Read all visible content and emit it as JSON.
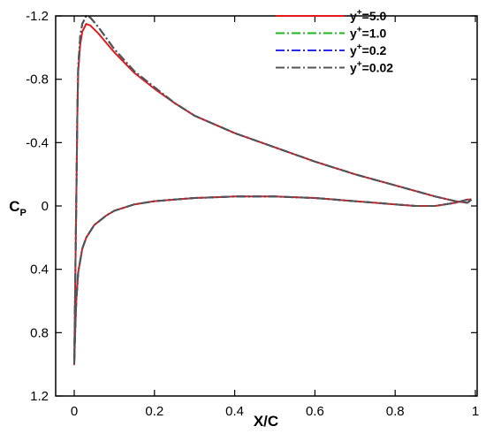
{
  "chart_data": {
    "type": "line",
    "title": "",
    "xlabel": "X/C",
    "ylabel_main": "C",
    "ylabel_sub": "P",
    "xlim": [
      0,
      1
    ],
    "ylim": [
      1.2,
      -1.2
    ],
    "y_inverted": true,
    "grid": false,
    "legend_position": "top-right",
    "x_ticks": [
      0,
      0.2,
      0.4,
      0.6,
      0.8,
      1
    ],
    "x_tick_labels": [
      "0",
      "0.2",
      "0.4",
      "0.6",
      "0.8",
      "1"
    ],
    "y_ticks": [
      -1.2,
      -0.8,
      -0.4,
      0,
      0.4,
      0.8,
      1.2
    ],
    "y_tick_labels": [
      "-1.2",
      "-0.8",
      "-0.4",
      "0",
      "0.4",
      "0.8",
      "1.2"
    ],
    "series": [
      {
        "legend_base": "y",
        "legend_sup": "+",
        "legend_value": "=5.0",
        "color": "#e41a1a",
        "dash": "",
        "upper": [
          [
            0,
            1.0
          ],
          [
            0.002,
            0.6
          ],
          [
            0.004,
            0.2
          ],
          [
            0.006,
            -0.2
          ],
          [
            0.008,
            -0.6
          ],
          [
            0.01,
            -0.85
          ],
          [
            0.015,
            -1.02
          ],
          [
            0.02,
            -1.1
          ],
          [
            0.03,
            -1.15
          ],
          [
            0.04,
            -1.14
          ],
          [
            0.06,
            -1.09
          ],
          [
            0.08,
            -1.03
          ],
          [
            0.1,
            -0.97
          ],
          [
            0.15,
            -0.84
          ],
          [
            0.2,
            -0.74
          ],
          [
            0.25,
            -0.65
          ],
          [
            0.3,
            -0.57
          ],
          [
            0.4,
            -0.46
          ],
          [
            0.5,
            -0.37
          ],
          [
            0.6,
            -0.28
          ],
          [
            0.7,
            -0.2
          ],
          [
            0.8,
            -0.13
          ],
          [
            0.9,
            -0.06
          ],
          [
            0.95,
            -0.03
          ],
          [
            0.98,
            -0.02
          ],
          [
            0.99,
            -0.04
          ]
        ],
        "lower": [
          [
            0,
            1.0
          ],
          [
            0.002,
            0.82
          ],
          [
            0.005,
            0.6
          ],
          [
            0.01,
            0.42
          ],
          [
            0.02,
            0.27
          ],
          [
            0.03,
            0.2
          ],
          [
            0.05,
            0.12
          ],
          [
            0.08,
            0.06
          ],
          [
            0.1,
            0.03
          ],
          [
            0.15,
            -0.01
          ],
          [
            0.2,
            -0.03
          ],
          [
            0.3,
            -0.05
          ],
          [
            0.4,
            -0.06
          ],
          [
            0.5,
            -0.06
          ],
          [
            0.6,
            -0.05
          ],
          [
            0.7,
            -0.03
          ],
          [
            0.8,
            -0.01
          ],
          [
            0.85,
            0.0
          ],
          [
            0.9,
            0.0
          ],
          [
            0.95,
            -0.02
          ],
          [
            0.98,
            -0.04
          ],
          [
            0.99,
            -0.04
          ]
        ]
      },
      {
        "legend_base": "y",
        "legend_sup": "+",
        "legend_value": "=1.0",
        "color": "#1fb51f",
        "dash": "10,3,2,3",
        "upper": [
          [
            0,
            1.0
          ],
          [
            0.002,
            0.6
          ],
          [
            0.004,
            0.2
          ],
          [
            0.006,
            -0.2
          ],
          [
            0.008,
            -0.62
          ],
          [
            0.01,
            -0.88
          ],
          [
            0.015,
            -1.07
          ],
          [
            0.02,
            -1.15
          ],
          [
            0.03,
            -1.2
          ],
          [
            0.04,
            -1.19
          ],
          [
            0.06,
            -1.13
          ],
          [
            0.08,
            -1.06
          ],
          [
            0.1,
            -0.99
          ],
          [
            0.15,
            -0.85
          ],
          [
            0.2,
            -0.75
          ],
          [
            0.25,
            -0.65
          ],
          [
            0.3,
            -0.57
          ],
          [
            0.4,
            -0.46
          ],
          [
            0.5,
            -0.37
          ],
          [
            0.6,
            -0.28
          ],
          [
            0.7,
            -0.2
          ],
          [
            0.8,
            -0.13
          ],
          [
            0.9,
            -0.06
          ],
          [
            0.95,
            -0.03
          ],
          [
            0.98,
            -0.02
          ],
          [
            0.99,
            -0.04
          ]
        ],
        "lower": [
          [
            0,
            1.0
          ],
          [
            0.002,
            0.82
          ],
          [
            0.005,
            0.6
          ],
          [
            0.01,
            0.42
          ],
          [
            0.02,
            0.27
          ],
          [
            0.03,
            0.2
          ],
          [
            0.05,
            0.12
          ],
          [
            0.08,
            0.06
          ],
          [
            0.1,
            0.03
          ],
          [
            0.15,
            -0.01
          ],
          [
            0.2,
            -0.03
          ],
          [
            0.3,
            -0.05
          ],
          [
            0.4,
            -0.06
          ],
          [
            0.5,
            -0.06
          ],
          [
            0.6,
            -0.05
          ],
          [
            0.7,
            -0.03
          ],
          [
            0.8,
            -0.01
          ],
          [
            0.85,
            0.0
          ],
          [
            0.9,
            0.0
          ],
          [
            0.95,
            -0.02
          ],
          [
            0.98,
            -0.04
          ],
          [
            0.99,
            -0.04
          ]
        ]
      },
      {
        "legend_base": "y",
        "legend_sup": "+",
        "legend_value": "=0.2",
        "color": "#2a2ae8",
        "dash": "10,3,2,3",
        "upper": [
          [
            0,
            1.0
          ],
          [
            0.002,
            0.6
          ],
          [
            0.004,
            0.2
          ],
          [
            0.006,
            -0.2
          ],
          [
            0.008,
            -0.62
          ],
          [
            0.01,
            -0.88
          ],
          [
            0.015,
            -1.07
          ],
          [
            0.02,
            -1.15
          ],
          [
            0.03,
            -1.2
          ],
          [
            0.04,
            -1.19
          ],
          [
            0.06,
            -1.13
          ],
          [
            0.08,
            -1.06
          ],
          [
            0.1,
            -0.99
          ],
          [
            0.15,
            -0.85
          ],
          [
            0.2,
            -0.75
          ],
          [
            0.25,
            -0.65
          ],
          [
            0.3,
            -0.57
          ],
          [
            0.4,
            -0.46
          ],
          [
            0.5,
            -0.37
          ],
          [
            0.6,
            -0.28
          ],
          [
            0.7,
            -0.2
          ],
          [
            0.8,
            -0.13
          ],
          [
            0.9,
            -0.06
          ],
          [
            0.95,
            -0.03
          ],
          [
            0.98,
            -0.02
          ],
          [
            0.99,
            -0.04
          ]
        ],
        "lower": [
          [
            0,
            1.0
          ],
          [
            0.002,
            0.82
          ],
          [
            0.005,
            0.6
          ],
          [
            0.01,
            0.42
          ],
          [
            0.02,
            0.27
          ],
          [
            0.03,
            0.2
          ],
          [
            0.05,
            0.12
          ],
          [
            0.08,
            0.06
          ],
          [
            0.1,
            0.03
          ],
          [
            0.15,
            -0.01
          ],
          [
            0.2,
            -0.03
          ],
          [
            0.3,
            -0.05
          ],
          [
            0.4,
            -0.06
          ],
          [
            0.5,
            -0.06
          ],
          [
            0.6,
            -0.05
          ],
          [
            0.7,
            -0.03
          ],
          [
            0.8,
            -0.01
          ],
          [
            0.85,
            0.0
          ],
          [
            0.9,
            0.0
          ],
          [
            0.95,
            -0.02
          ],
          [
            0.98,
            -0.04
          ],
          [
            0.99,
            -0.04
          ]
        ]
      },
      {
        "legend_base": "y",
        "legend_sup": "+",
        "legend_value": "=0.02",
        "color": "#555555",
        "dash": "10,3,2,3",
        "upper": [
          [
            0,
            1.0
          ],
          [
            0.002,
            0.6
          ],
          [
            0.004,
            0.2
          ],
          [
            0.006,
            -0.2
          ],
          [
            0.008,
            -0.62
          ],
          [
            0.01,
            -0.88
          ],
          [
            0.015,
            -1.07
          ],
          [
            0.02,
            -1.15
          ],
          [
            0.03,
            -1.2
          ],
          [
            0.04,
            -1.19
          ],
          [
            0.06,
            -1.13
          ],
          [
            0.08,
            -1.06
          ],
          [
            0.1,
            -0.99
          ],
          [
            0.15,
            -0.85
          ],
          [
            0.2,
            -0.75
          ],
          [
            0.25,
            -0.65
          ],
          [
            0.3,
            -0.57
          ],
          [
            0.4,
            -0.46
          ],
          [
            0.5,
            -0.37
          ],
          [
            0.6,
            -0.28
          ],
          [
            0.7,
            -0.2
          ],
          [
            0.8,
            -0.13
          ],
          [
            0.9,
            -0.06
          ],
          [
            0.95,
            -0.03
          ],
          [
            0.98,
            -0.02
          ],
          [
            0.99,
            -0.04
          ]
        ],
        "lower": [
          [
            0,
            1.0
          ],
          [
            0.002,
            0.82
          ],
          [
            0.005,
            0.6
          ],
          [
            0.01,
            0.42
          ],
          [
            0.02,
            0.27
          ],
          [
            0.03,
            0.2
          ],
          [
            0.05,
            0.12
          ],
          [
            0.08,
            0.06
          ],
          [
            0.1,
            0.03
          ],
          [
            0.15,
            -0.01
          ],
          [
            0.2,
            -0.03
          ],
          [
            0.3,
            -0.05
          ],
          [
            0.4,
            -0.06
          ],
          [
            0.5,
            -0.06
          ],
          [
            0.6,
            -0.05
          ],
          [
            0.7,
            -0.03
          ],
          [
            0.8,
            -0.01
          ],
          [
            0.85,
            0.0
          ],
          [
            0.9,
            0.0
          ],
          [
            0.95,
            -0.02
          ],
          [
            0.98,
            -0.04
          ],
          [
            0.99,
            -0.04
          ]
        ]
      }
    ]
  }
}
